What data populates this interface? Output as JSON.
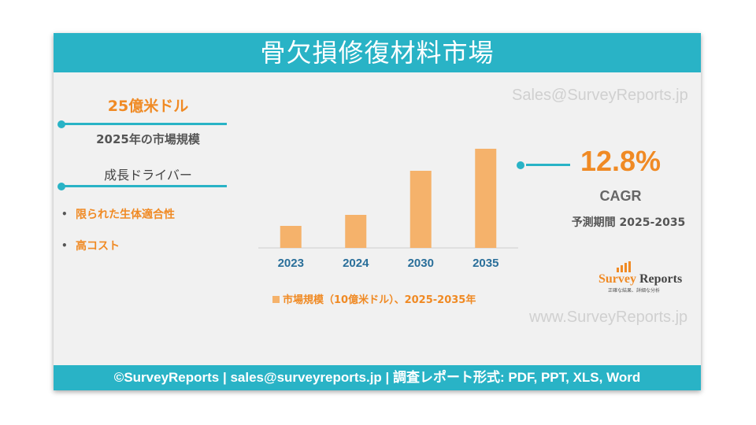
{
  "title": "骨欠損修復材料市場",
  "watermarks": {
    "top": "Sales@SurveyReports.jp",
    "bottom": "www.SurveyReports.jp"
  },
  "market": {
    "value": "25億米ドル",
    "label": "2025年の市場規模"
  },
  "drivers": {
    "title": "成長ドライバー",
    "items": [
      "限られた生体適合性",
      "高コスト"
    ]
  },
  "cagr": {
    "value": "12.8%",
    "label": "CAGR",
    "forecast": "予測期間 2025-2035"
  },
  "logo": {
    "word1": "Survey",
    "word2": " Reports",
    "tagline": "正確な結果、詳細な分析"
  },
  "footer": "©SurveyReports | sales@surveyreports.jp | 調査レポート形式: PDF, PPT, XLS, Word",
  "colors": {
    "accent": "#f08a24",
    "bar": "#f5b26b",
    "teal": "#29b3c6"
  },
  "chart_data": {
    "type": "bar",
    "categories": [
      "2023",
      "2024",
      "2030",
      "2035"
    ],
    "values": [
      2.0,
      3.0,
      7.0,
      9.0
    ],
    "legend": "市場規模（10億米ドル）、2025-2035年",
    "title": "",
    "xlabel": "",
    "ylabel": "",
    "ylim": [
      0,
      10
    ],
    "grid": false
  }
}
